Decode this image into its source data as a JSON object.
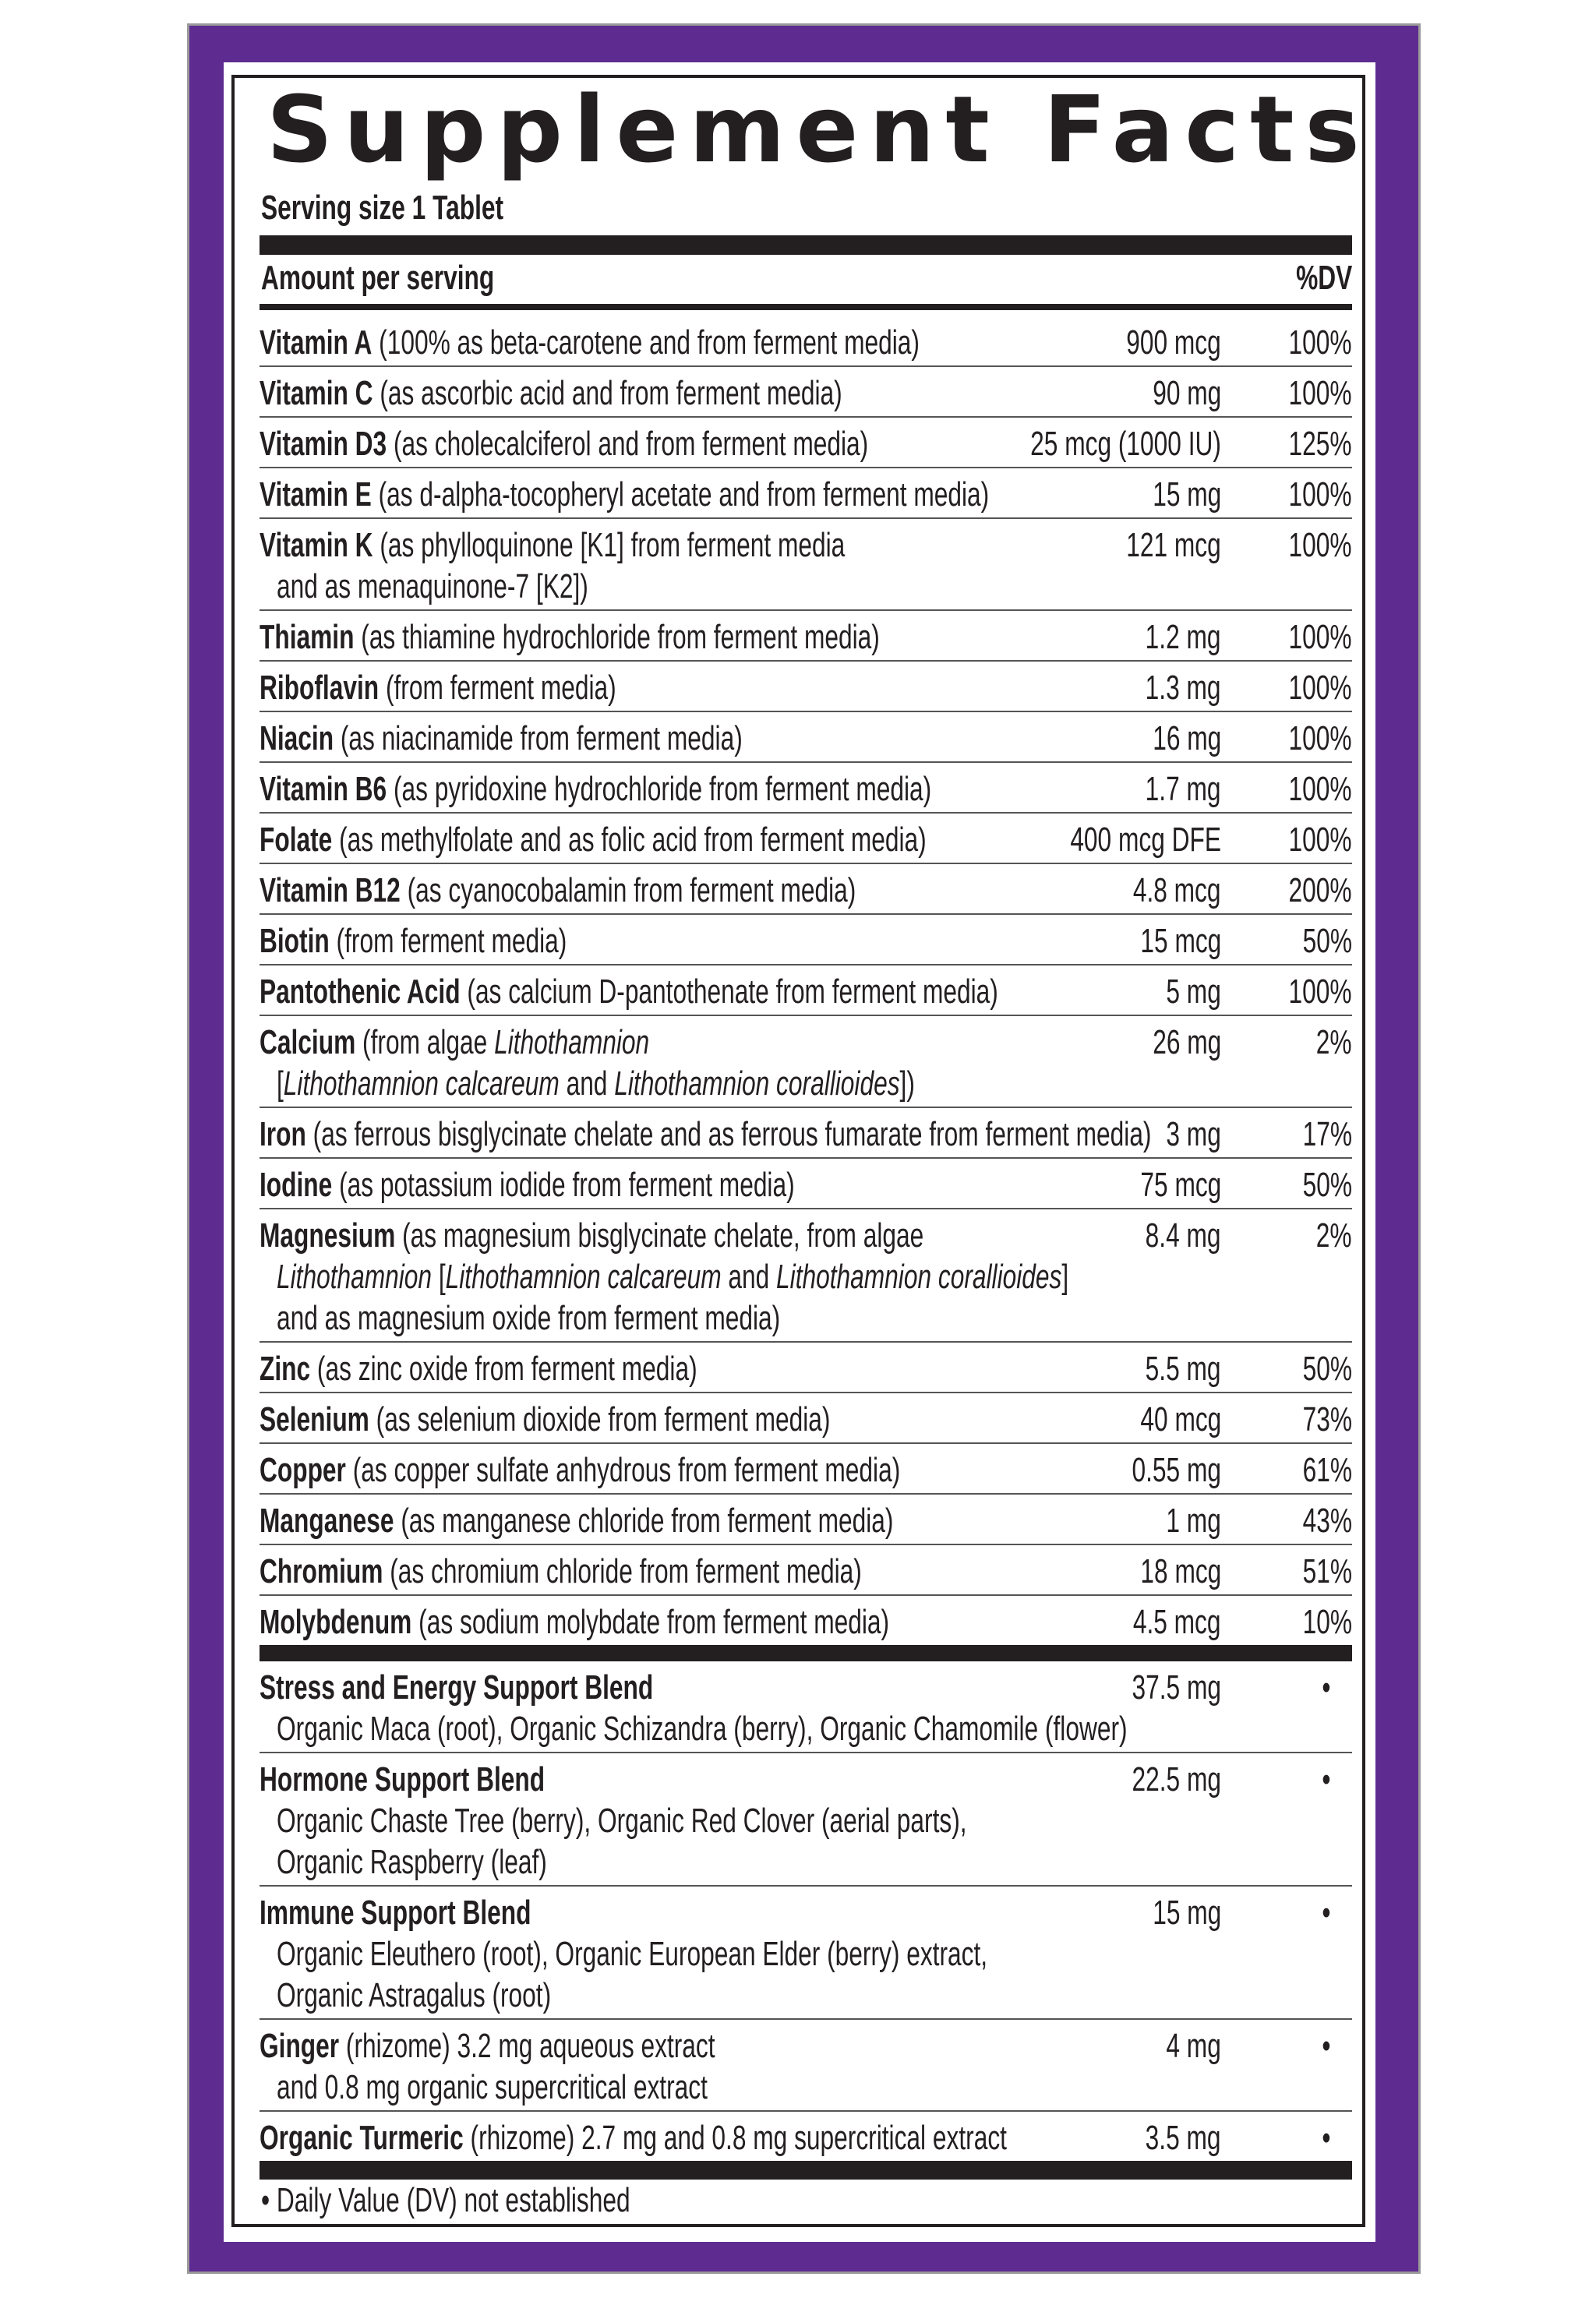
{
  "header": {
    "title": "Supplement Facts",
    "serving_size": "Serving size 1 Tablet",
    "amount_per_serving": "Amount per serving",
    "dv_header": "%DV"
  },
  "colors": {
    "frame_purple": "#5e2b91",
    "frame_edge": "#9a9a9a",
    "ink": "#231f20"
  },
  "nutrients": [
    {
      "name": "Vitamin A",
      "lines": [
        "(100% as beta-carotene and from ferment media)"
      ],
      "amount": "900 mcg",
      "dv": "100%"
    },
    {
      "name": "Vitamin C",
      "lines": [
        "(as ascorbic acid and from ferment media)"
      ],
      "amount": "90 mg",
      "dv": "100%"
    },
    {
      "name": "Vitamin D3",
      "lines": [
        "(as cholecalciferol and from ferment media)"
      ],
      "amount": "25 mcg (1000 IU)",
      "dv": "125%"
    },
    {
      "name": "Vitamin E",
      "lines": [
        "(as d-alpha-tocopheryl acetate and from ferment media)"
      ],
      "amount": "15 mg",
      "dv": "100%"
    },
    {
      "name": "Vitamin K",
      "lines": [
        "(as phylloquinone [K1] from ferment media",
        "and as menaquinone-7 [K2])"
      ],
      "amount": "121 mcg",
      "dv": "100%"
    },
    {
      "name": "Thiamin",
      "lines": [
        "(as thiamine hydrochloride from ferment media)"
      ],
      "amount": "1.2 mg",
      "dv": "100%"
    },
    {
      "name": "Riboflavin",
      "lines": [
        "(from ferment media)"
      ],
      "amount": "1.3 mg",
      "dv": "100%"
    },
    {
      "name": "Niacin",
      "lines": [
        "(as niacinamide from ferment media)"
      ],
      "amount": "16 mg",
      "dv": "100%"
    },
    {
      "name": "Vitamin B6",
      "lines": [
        "(as pyridoxine hydrochloride from ferment media)"
      ],
      "amount": "1.7 mg",
      "dv": "100%"
    },
    {
      "name": "Folate",
      "lines": [
        "(as methylfolate and as folic acid from ferment media)"
      ],
      "amount": "400 mcg DFE",
      "dv": "100%"
    },
    {
      "name": "Vitamin B12",
      "lines": [
        "(as cyanocobalamin from ferment media)"
      ],
      "amount": "4.8 mcg",
      "dv": "200%"
    },
    {
      "name": "Biotin",
      "lines": [
        "(from ferment media)"
      ],
      "amount": "15 mcg",
      "dv": "50%"
    },
    {
      "name": "Pantothenic Acid",
      "lines": [
        "(as calcium D-pantothenate from ferment media)"
      ],
      "amount": "5 mg",
      "dv": "100%"
    },
    {
      "name": "Calcium",
      "lines": [
        [
          {
            "t": "(from algae "
          },
          {
            "t": "Lithothamnion",
            "i": true
          }
        ],
        [
          {
            "t": "["
          },
          {
            "t": "Lithothamnion calcareum",
            "i": true
          },
          {
            "t": " and "
          },
          {
            "t": "Lithothamnion corallioides",
            "i": true
          },
          {
            "t": "])"
          }
        ]
      ],
      "amount": "26 mg",
      "dv": "2%"
    },
    {
      "name": "Iron",
      "lines": [
        "(as ferrous bisglycinate chelate and as ferrous fumarate from ferment media)"
      ],
      "amount": "3 mg",
      "dv": "17%"
    },
    {
      "name": "Iodine",
      "lines": [
        "(as potassium iodide from ferment media)"
      ],
      "amount": "75 mcg",
      "dv": "50%"
    },
    {
      "name": "Magnesium",
      "lines": [
        [
          {
            "t": "(as magnesium bisglycinate chelate, from algae"
          }
        ],
        [
          {
            "t": "Lithothamnion",
            "i": true
          },
          {
            "t": " ["
          },
          {
            "t": "Lithothamnion calcareum",
            "i": true
          },
          {
            "t": " and "
          },
          {
            "t": "Lithothamnion corallioides",
            "i": true
          },
          {
            "t": "]"
          }
        ],
        [
          {
            "t": "and as magnesium oxide from ferment media)"
          }
        ]
      ],
      "amount": "8.4 mg",
      "dv": "2%"
    },
    {
      "name": "Zinc",
      "lines": [
        "(as zinc oxide from ferment media)"
      ],
      "amount": "5.5 mg",
      "dv": "50%"
    },
    {
      "name": "Selenium",
      "lines": [
        "(as selenium dioxide from ferment media)"
      ],
      "amount": "40 mcg",
      "dv": "73%"
    },
    {
      "name": "Copper",
      "lines": [
        "(as copper sulfate anhydrous from ferment media)"
      ],
      "amount": "0.55 mg",
      "dv": "61%"
    },
    {
      "name": "Manganese",
      "lines": [
        "(as manganese chloride from ferment media)"
      ],
      "amount": "1 mg",
      "dv": "43%"
    },
    {
      "name": "Chromium",
      "lines": [
        "(as chromium chloride from ferment media)"
      ],
      "amount": "18 mcg",
      "dv": "51%"
    },
    {
      "name": "Molybdenum",
      "lines": [
        "(as sodium molybdate from ferment media)"
      ],
      "amount": "4.5 mcg",
      "dv": "10%"
    }
  ],
  "blends": [
    {
      "name": "Stress and Energy Support Blend",
      "lines": [
        "Organic Maca (root), Organic Schizandra (berry), Organic Chamomile (flower)"
      ],
      "amount": "37.5 mg",
      "dv": "•"
    },
    {
      "name": "Hormone Support Blend",
      "lines": [
        "Organic Chaste Tree (berry), Organic Red Clover (aerial parts),",
        "Organic Raspberry (leaf)"
      ],
      "amount": "22.5 mg",
      "dv": "•"
    },
    {
      "name": "Immune Support Blend",
      "lines": [
        "Organic Eleuthero (root), Organic European Elder (berry) extract,",
        "Organic Astragalus (root)"
      ],
      "amount": "15 mg",
      "dv": "•"
    }
  ],
  "botanicals": [
    {
      "name": "Ginger",
      "lines": [
        "(rhizome) 3.2 mg aqueous extract",
        "and 0.8 mg organic supercritical extract"
      ],
      "amount": "4 mg",
      "dv": "•"
    },
    {
      "name": "Organic Turmeric",
      "lines": [
        "(rhizome) 2.7 mg and 0.8 mg supercritical extract"
      ],
      "amount": "3.5 mg",
      "dv": "•"
    }
  ],
  "footer": "• Daily Value (DV) not established"
}
